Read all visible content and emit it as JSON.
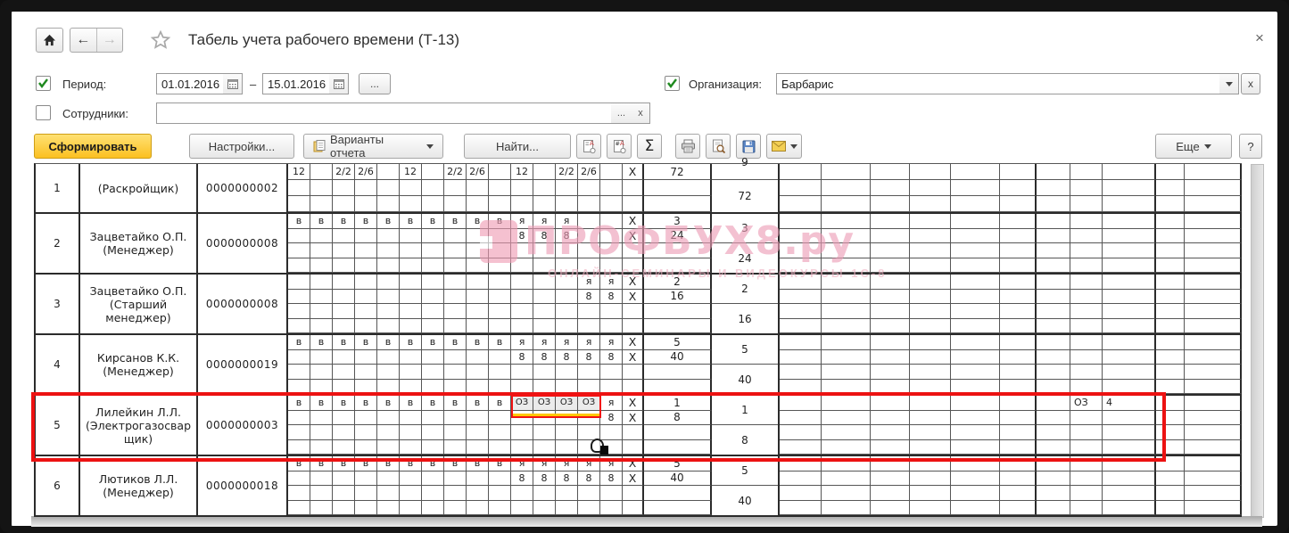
{
  "window": {
    "title": "Табель учета рабочего времени (Т-13)",
    "close": "×"
  },
  "filters": {
    "period": {
      "label": "Период:",
      "from": "01.01.2016",
      "to": "15.01.2016",
      "dash": "–",
      "checked": true,
      "options_button": "..."
    },
    "employees": {
      "label": "Сотрудники:",
      "value": "",
      "checked": false,
      "select_button": "...",
      "clear_button": "x"
    },
    "organization": {
      "label": "Организация:",
      "value": "Барбарис",
      "checked": true,
      "clear_button": "x"
    }
  },
  "toolbar": {
    "generate": "Сформировать",
    "settings": "Настройки...",
    "variants": "Варианты отчета",
    "find": "Найти...",
    "sigma": "Σ",
    "more": "Еще",
    "help": "?"
  },
  "watermark": {
    "title": "ПРОФБУХ8.ру",
    "subtitle": "ОНЛАЙН-СЕМИНАРЫ И ВИДЕОКУРСЫ 1С-8"
  },
  "colors": {
    "accent_yellow": "#fbc021",
    "highlight_red": "#ec1212",
    "oz_underline": "#ffc800",
    "watermark_pink": "#ec9cb5",
    "check_green": "#1f8a1f"
  },
  "table": {
    "x_mark": "X",
    "rows": [
      {
        "num": "1",
        "name_lines": [
          "(Раскройщик)"
        ],
        "id": "0000000002",
        "clipped": true,
        "codes": [
          "",
          "",
          "",
          "",
          "",
          "",
          "",
          "",
          "",
          "",
          "",
          "",
          "",
          "",
          ""
        ],
        "hours": [
          "12",
          "",
          "2/2",
          "2/6",
          "",
          "12",
          "",
          "2/2",
          "2/6",
          "",
          "12",
          "",
          "2/2",
          "2/6",
          ""
        ],
        "half_days": "",
        "half_hours": "72",
        "month_days": "9",
        "month_hours": "72"
      },
      {
        "num": "2",
        "name_lines": [
          "Зацветайко О.П.",
          "(Менеджер)"
        ],
        "id": "0000000008",
        "codes": [
          "в",
          "в",
          "в",
          "в",
          "в",
          "в",
          "в",
          "в",
          "в",
          "в",
          "я",
          "я",
          "я",
          "",
          ""
        ],
        "hours": [
          "",
          "",
          "",
          "",
          "",
          "",
          "",
          "",
          "",
          "",
          "8",
          "8",
          "8",
          "",
          ""
        ],
        "half_days": "3",
        "half_hours": "24",
        "month_days": "3",
        "month_hours": "24"
      },
      {
        "num": "3",
        "name_lines": [
          "Зацветайко О.П.",
          "(Старший",
          "менеджер)"
        ],
        "id": "0000000008",
        "codes": [
          "",
          "",
          "",
          "",
          "",
          "",
          "",
          "",
          "",
          "",
          "",
          "",
          "",
          "я",
          "я"
        ],
        "hours": [
          "",
          "",
          "",
          "",
          "",
          "",
          "",
          "",
          "",
          "",
          "",
          "",
          "",
          "8",
          "8"
        ],
        "half_days": "2",
        "half_hours": "16",
        "month_days": "2",
        "month_hours": "16"
      },
      {
        "num": "4",
        "name_lines": [
          "Кирсанов К.К.",
          "(Менеджер)"
        ],
        "id": "0000000019",
        "codes": [
          "в",
          "в",
          "в",
          "в",
          "в",
          "в",
          "в",
          "в",
          "в",
          "в",
          "я",
          "я",
          "я",
          "я",
          "я"
        ],
        "hours": [
          "",
          "",
          "",
          "",
          "",
          "",
          "",
          "",
          "",
          "",
          "8",
          "8",
          "8",
          "8",
          "8"
        ],
        "half_days": "5",
        "half_hours": "40",
        "month_days": "5",
        "month_hours": "40"
      },
      {
        "num": "5",
        "name_lines": [
          "Лилейкин Л.Л.",
          "(Электрогазосвар",
          "щик)"
        ],
        "id": "0000000003",
        "highlight": true,
        "oz_start": 10,
        "oz_end": 13,
        "codes": [
          "в",
          "в",
          "в",
          "в",
          "в",
          "в",
          "в",
          "в",
          "в",
          "в",
          "ОЗ",
          "ОЗ",
          "ОЗ",
          "ОЗ",
          "я"
        ],
        "hours": [
          "",
          "",
          "",
          "",
          "",
          "",
          "",
          "",
          "",
          "",
          "",
          "",
          "",
          "",
          "8"
        ],
        "half_days": "1",
        "half_hours": "8",
        "month_days": "1",
        "month_hours": "8",
        "absence_code": "ОЗ",
        "absence_days": "4"
      },
      {
        "num": "6",
        "name_lines": [
          "Лютиков Л.Л.",
          "(Менеджер)"
        ],
        "id": "0000000018",
        "codes": [
          "в",
          "в",
          "в",
          "в",
          "в",
          "в",
          "в",
          "в",
          "в",
          "в",
          "я",
          "я",
          "я",
          "я",
          "я"
        ],
        "hours": [
          "",
          "",
          "",
          "",
          "",
          "",
          "",
          "",
          "",
          "",
          "8",
          "8",
          "8",
          "8",
          "8"
        ],
        "half_days": "5",
        "half_hours": "40",
        "month_days": "5",
        "month_hours": "40"
      }
    ]
  }
}
